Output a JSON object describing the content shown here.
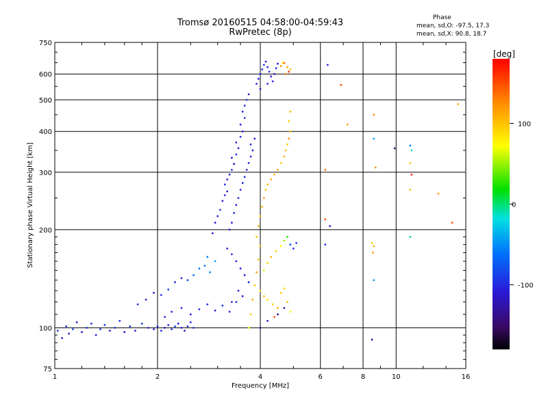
{
  "header": {
    "title": "Tromsø 20160515 04:58:00-04:59:43",
    "subtitle": "RwPretec (8p)"
  },
  "phase_box": {
    "heading": "Phase",
    "line_o": "mean, sd,O: -97.5, 17.3",
    "line_x": "mean, sd,X:  90.8, 18.7"
  },
  "colorbar": {
    "label": "[deg]",
    "ticks": [
      {
        "v": 100,
        "label": "100"
      },
      {
        "v": 0,
        "label": "0"
      },
      {
        "v": -100,
        "label": "-100"
      }
    ],
    "range": [
      -180,
      180
    ]
  },
  "chart_data": {
    "type": "scatter",
    "xlabel": "Frequency [MHz]",
    "ylabel": "Stationary phase Virtual Height [km]",
    "x_scale": "log",
    "y_scale": "log",
    "xlim": [
      1,
      16
    ],
    "ylim": [
      75,
      750
    ],
    "grid": true,
    "x_ticks": [
      {
        "v": 1,
        "label": "1"
      },
      {
        "v": 2,
        "label": "2"
      },
      {
        "v": 4,
        "label": "4"
      },
      {
        "v": 6,
        "label": "6"
      },
      {
        "v": 8,
        "label": "8"
      },
      {
        "v": 10,
        "label": "10"
      },
      {
        "v": 16,
        "label": "16"
      }
    ],
    "y_ticks": [
      {
        "v": 75,
        "label": "75"
      },
      {
        "v": 100,
        "label": "100"
      },
      {
        "v": 200,
        "label": "200"
      },
      {
        "v": 300,
        "label": "300"
      },
      {
        "v": 400,
        "label": "400"
      },
      {
        "v": 500,
        "label": "500"
      },
      {
        "v": 600,
        "label": "600"
      },
      {
        "v": 750,
        "label": "750"
      }
    ],
    "x_gridlines": [
      1,
      2,
      4,
      6,
      8,
      10,
      16
    ],
    "y_gridlines": [
      75,
      100,
      200,
      300,
      400,
      500,
      600,
      750
    ],
    "color_variable": "phase [deg]",
    "points": [
      [
        1.02,
        98,
        -95
      ],
      [
        1.05,
        93,
        -110
      ],
      [
        1.08,
        101,
        -100
      ],
      [
        1.1,
        96,
        -120
      ],
      [
        1.13,
        99,
        -90
      ],
      [
        1.16,
        104,
        -105
      ],
      [
        1.2,
        97,
        -115
      ],
      [
        1.24,
        100,
        -95
      ],
      [
        1.28,
        103,
        -100
      ],
      [
        1.32,
        95,
        -110
      ],
      [
        1.36,
        99,
        -100
      ],
      [
        1.4,
        102,
        -92
      ],
      [
        1.45,
        98,
        -118
      ],
      [
        1.5,
        100,
        -100
      ],
      [
        1.55,
        105,
        -95
      ],
      [
        1.6,
        97,
        -108
      ],
      [
        1.66,
        101,
        -100
      ],
      [
        1.72,
        98,
        -112
      ],
      [
        1.8,
        103,
        -97
      ],
      [
        1.88,
        100,
        -102
      ],
      [
        1.95,
        99,
        -110
      ],
      [
        2.0,
        101,
        -100
      ],
      [
        2.05,
        98,
        -95
      ],
      [
        2.1,
        100,
        -115
      ],
      [
        2.15,
        102,
        -105
      ],
      [
        2.2,
        99,
        -100
      ],
      [
        2.25,
        101,
        -92
      ],
      [
        2.3,
        103,
        -110
      ],
      [
        2.35,
        100,
        -100
      ],
      [
        2.4,
        98,
        -118
      ],
      [
        2.45,
        101,
        -100
      ],
      [
        2.5,
        104,
        -105
      ],
      [
        2.55,
        100,
        -95
      ],
      [
        1.75,
        118,
        -100
      ],
      [
        1.85,
        122,
        -105
      ],
      [
        1.95,
        128,
        -110
      ],
      [
        2.05,
        126,
        -100
      ],
      [
        2.15,
        131,
        -95
      ],
      [
        2.25,
        138,
        -100
      ],
      [
        2.35,
        142,
        -108
      ],
      [
        2.45,
        140,
        -85
      ],
      [
        2.55,
        145,
        -65
      ],
      [
        2.65,
        152,
        -55
      ],
      [
        2.75,
        155,
        -60
      ],
      [
        2.85,
        148,
        -50
      ],
      [
        2.95,
        160,
        -45
      ],
      [
        2.8,
        165,
        -55
      ],
      [
        2.1,
        108,
        -100
      ],
      [
        2.2,
        112,
        -110
      ],
      [
        2.35,
        115,
        -100
      ],
      [
        2.5,
        110,
        -105
      ],
      [
        2.65,
        114,
        -100
      ],
      [
        2.8,
        118,
        -95
      ],
      [
        2.95,
        113,
        -110
      ],
      [
        3.1,
        117,
        -100
      ],
      [
        3.25,
        112,
        -105
      ],
      [
        3.4,
        120,
        -100
      ],
      [
        2.9,
        195,
        -110
      ],
      [
        2.95,
        210,
        -108
      ],
      [
        3.0,
        220,
        -115
      ],
      [
        3.05,
        230,
        -100
      ],
      [
        3.1,
        245,
        -110
      ],
      [
        3.15,
        255,
        -105
      ],
      [
        3.2,
        262,
        -112
      ],
      [
        3.15,
        275,
        -100
      ],
      [
        3.2,
        285,
        -110
      ],
      [
        3.25,
        295,
        -105
      ],
      [
        3.3,
        305,
        -100
      ],
      [
        3.35,
        318,
        -112
      ],
      [
        3.3,
        332,
        -108
      ],
      [
        3.4,
        340,
        -100
      ],
      [
        3.45,
        355,
        -110
      ],
      [
        3.4,
        370,
        -105
      ],
      [
        3.5,
        385,
        -100
      ],
      [
        3.55,
        400,
        -112
      ],
      [
        3.5,
        420,
        -108
      ],
      [
        3.6,
        440,
        -100
      ],
      [
        3.55,
        460,
        -110
      ],
      [
        3.6,
        480,
        -105
      ],
      [
        3.65,
        500,
        -100
      ],
      [
        3.7,
        520,
        -110
      ],
      [
        3.25,
        200,
        -112
      ],
      [
        3.3,
        210,
        -105
      ],
      [
        3.35,
        225,
        -100
      ],
      [
        3.4,
        238,
        -110
      ],
      [
        3.45,
        250,
        -100
      ],
      [
        3.5,
        265,
        -108
      ],
      [
        3.55,
        278,
        -105
      ],
      [
        3.6,
        290,
        -100
      ],
      [
        3.65,
        305,
        -112
      ],
      [
        3.7,
        320,
        -100
      ],
      [
        3.75,
        335,
        -108
      ],
      [
        3.8,
        350,
        -110
      ],
      [
        3.75,
        365,
        -100
      ],
      [
        3.85,
        380,
        -105
      ],
      [
        3.2,
        175,
        -110
      ],
      [
        3.3,
        168,
        -100
      ],
      [
        3.4,
        160,
        -108
      ],
      [
        3.5,
        152,
        -105
      ],
      [
        3.6,
        145,
        -112
      ],
      [
        3.7,
        138,
        -100
      ],
      [
        3.45,
        130,
        -108
      ],
      [
        3.55,
        125,
        -110
      ],
      [
        3.3,
        120,
        -100
      ],
      [
        3.9,
        560,
        -105
      ],
      [
        3.95,
        580,
        -100
      ],
      [
        4.0,
        600,
        -110
      ],
      [
        4.05,
        620,
        -108
      ],
      [
        4.1,
        640,
        -100
      ],
      [
        4.15,
        655,
        -105
      ],
      [
        4.2,
        630,
        -110
      ],
      [
        4.25,
        610,
        -100
      ],
      [
        4.3,
        590,
        -108
      ],
      [
        4.35,
        570,
        -105
      ],
      [
        4.4,
        600,
        -112
      ],
      [
        4.45,
        625,
        -100
      ],
      [
        4.5,
        645,
        -108
      ],
      [
        4.0,
        540,
        -110
      ],
      [
        4.2,
        560,
        -105
      ],
      [
        4.6,
        635,
        130
      ],
      [
        4.7,
        648,
        150
      ],
      [
        4.8,
        630,
        120
      ],
      [
        4.85,
        610,
        160
      ],
      [
        4.9,
        620,
        100
      ],
      [
        4.65,
        650,
        80
      ],
      [
        4.75,
        600,
        135
      ],
      [
        3.7,
        100,
        70
      ],
      [
        3.75,
        110,
        100
      ],
      [
        3.8,
        122,
        110
      ],
      [
        3.85,
        135,
        95
      ],
      [
        3.9,
        148,
        120
      ],
      [
        3.95,
        162,
        105
      ],
      [
        4.0,
        178,
        110
      ],
      [
        3.9,
        190,
        100
      ],
      [
        3.95,
        205,
        115
      ],
      [
        4.0,
        220,
        100
      ],
      [
        4.05,
        235,
        110
      ],
      [
        4.1,
        250,
        120
      ],
      [
        4.15,
        265,
        100
      ],
      [
        4.2,
        275,
        105
      ],
      [
        4.3,
        285,
        110
      ],
      [
        4.4,
        295,
        100
      ],
      [
        4.5,
        305,
        115
      ],
      [
        4.6,
        320,
        100
      ],
      [
        4.7,
        335,
        110
      ],
      [
        4.75,
        350,
        105
      ],
      [
        4.8,
        365,
        100
      ],
      [
        4.85,
        380,
        120
      ],
      [
        4.9,
        400,
        110
      ],
      [
        4.85,
        430,
        100
      ],
      [
        4.9,
        460,
        105
      ],
      [
        4.1,
        150,
        60
      ],
      [
        4.2,
        158,
        85
      ],
      [
        4.3,
        165,
        110
      ],
      [
        4.45,
        172,
        95
      ],
      [
        4.6,
        178,
        70
      ],
      [
        4.7,
        185,
        45
      ],
      [
        4.8,
        190,
        10
      ],
      [
        4.9,
        180,
        -80
      ],
      [
        5.0,
        175,
        -100
      ],
      [
        5.1,
        182,
        -90
      ],
      [
        4.0,
        130,
        90
      ],
      [
        4.1,
        125,
        100
      ],
      [
        4.2,
        122,
        85
      ],
      [
        4.35,
        118,
        95
      ],
      [
        4.5,
        115,
        110
      ],
      [
        4.6,
        128,
        100
      ],
      [
        4.7,
        132,
        90
      ],
      [
        4.8,
        120,
        105
      ],
      [
        4.9,
        112,
        80
      ],
      [
        4.4,
        108,
        150
      ],
      [
        4.0,
        100,
        -130
      ],
      [
        4.2,
        105,
        -120
      ],
      [
        4.5,
        110,
        -140
      ],
      [
        4.7,
        115,
        -130
      ],
      [
        6.3,
        640,
        -100
      ],
      [
        6.2,
        305,
        140
      ],
      [
        6.2,
        215,
        150
      ],
      [
        6.4,
        205,
        -110
      ],
      [
        6.2,
        180,
        -100
      ],
      [
        6.9,
        555,
        155
      ],
      [
        7.2,
        420,
        120
      ],
      [
        8.6,
        450,
        130
      ],
      [
        8.6,
        380,
        -40
      ],
      [
        8.7,
        310,
        130
      ],
      [
        8.5,
        182,
        100
      ],
      [
        8.6,
        178,
        110
      ],
      [
        8.55,
        170,
        120
      ],
      [
        8.6,
        140,
        -40
      ],
      [
        8.5,
        92,
        -130
      ],
      [
        9.9,
        355,
        -150
      ],
      [
        11.0,
        362,
        -60
      ],
      [
        11.1,
        350,
        -20
      ],
      [
        11.0,
        320,
        100
      ],
      [
        11.1,
        295,
        170
      ],
      [
        11.0,
        265,
        110
      ],
      [
        11.0,
        190,
        -10
      ],
      [
        13.3,
        258,
        120
      ],
      [
        14.6,
        210,
        150
      ],
      [
        15.2,
        485,
        110
      ]
    ]
  }
}
